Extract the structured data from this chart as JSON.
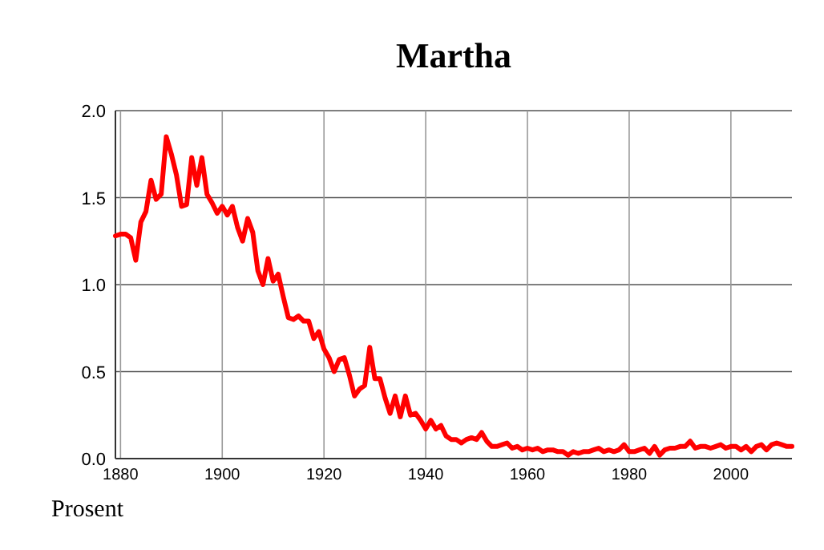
{
  "chart_data": {
    "type": "line",
    "title": "Martha",
    "annotations": [
      "Prosent"
    ],
    "x": [
      1879,
      1880,
      1881,
      1882,
      1883,
      1884,
      1885,
      1886,
      1887,
      1888,
      1889,
      1890,
      1891,
      1892,
      1893,
      1894,
      1895,
      1896,
      1897,
      1898,
      1899,
      1900,
      1901,
      1902,
      1903,
      1904,
      1905,
      1906,
      1907,
      1908,
      1909,
      1910,
      1911,
      1912,
      1913,
      1914,
      1915,
      1916,
      1917,
      1918,
      1919,
      1920,
      1921,
      1922,
      1923,
      1924,
      1925,
      1926,
      1927,
      1928,
      1929,
      1930,
      1931,
      1932,
      1933,
      1934,
      1935,
      1936,
      1937,
      1938,
      1939,
      1940,
      1941,
      1942,
      1943,
      1944,
      1945,
      1946,
      1947,
      1948,
      1949,
      1950,
      1951,
      1952,
      1953,
      1954,
      1955,
      1956,
      1957,
      1958,
      1959,
      1960,
      1961,
      1962,
      1963,
      1964,
      1965,
      1966,
      1967,
      1968,
      1969,
      1970,
      1971,
      1972,
      1973,
      1974,
      1975,
      1976,
      1977,
      1978,
      1979,
      1980,
      1981,
      1982,
      1983,
      1984,
      1985,
      1986,
      1987,
      1988,
      1989,
      1990,
      1991,
      1992,
      1993,
      1994,
      1995,
      1996,
      1997,
      1998,
      1999,
      2000,
      2001,
      2002,
      2003,
      2004,
      2005,
      2006,
      2007,
      2008,
      2009,
      2010,
      2011,
      2012
    ],
    "series": [
      {
        "color": "#ff0000",
        "values": [
          1.28,
          1.29,
          1.29,
          1.27,
          1.14,
          1.36,
          1.42,
          1.6,
          1.49,
          1.52,
          1.85,
          1.75,
          1.63,
          1.45,
          1.46,
          1.73,
          1.57,
          1.73,
          1.52,
          1.47,
          1.41,
          1.45,
          1.4,
          1.45,
          1.33,
          1.25,
          1.38,
          1.3,
          1.08,
          1.0,
          1.15,
          1.02,
          1.06,
          0.93,
          0.81,
          0.8,
          0.82,
          0.79,
          0.79,
          0.69,
          0.73,
          0.63,
          0.58,
          0.5,
          0.57,
          0.58,
          0.48,
          0.36,
          0.4,
          0.42,
          0.64,
          0.46,
          0.46,
          0.35,
          0.26,
          0.36,
          0.24,
          0.36,
          0.25,
          0.26,
          0.22,
          0.17,
          0.22,
          0.17,
          0.19,
          0.13,
          0.11,
          0.11,
          0.09,
          0.11,
          0.12,
          0.11,
          0.15,
          0.1,
          0.07,
          0.07,
          0.08,
          0.09,
          0.06,
          0.07,
          0.05,
          0.06,
          0.05,
          0.06,
          0.04,
          0.05,
          0.05,
          0.04,
          0.04,
          0.02,
          0.04,
          0.03,
          0.04,
          0.04,
          0.05,
          0.06,
          0.04,
          0.05,
          0.04,
          0.05,
          0.08,
          0.04,
          0.04,
          0.05,
          0.06,
          0.03,
          0.07,
          0.02,
          0.05,
          0.06,
          0.06,
          0.07,
          0.07,
          0.1,
          0.06,
          0.07,
          0.07,
          0.06,
          0.07,
          0.08,
          0.06,
          0.07,
          0.07,
          0.05,
          0.07,
          0.04,
          0.07,
          0.08,
          0.05,
          0.08,
          0.09,
          0.08,
          0.07,
          0.07
        ]
      }
    ],
    "xlim": [
      1879,
      2012
    ],
    "xticks": [
      1880,
      1900,
      1920,
      1940,
      1960,
      1980,
      2000
    ],
    "ylim": [
      0,
      2
    ],
    "yticks": [
      {
        "value": 0,
        "label": "0.0"
      },
      0.5,
      {
        "value": 1,
        "label": "1.0"
      },
      1.5,
      {
        "value": 2,
        "label": "2.0"
      }
    ],
    "grid": true,
    "marker": "none",
    "line_style": "solid"
  }
}
